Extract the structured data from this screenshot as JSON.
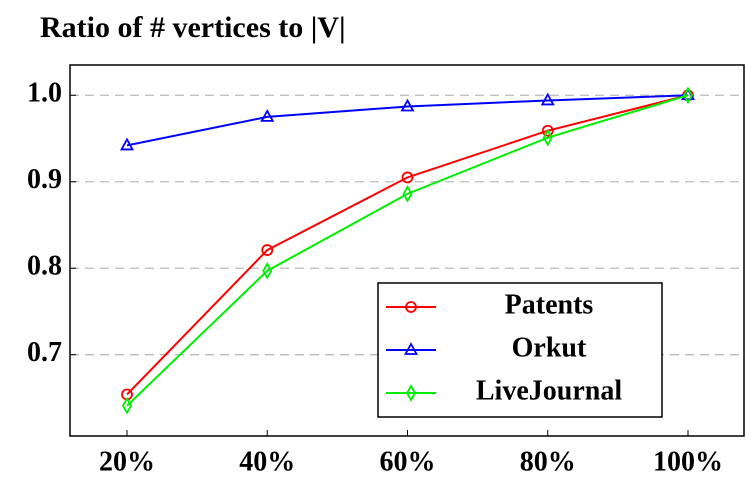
{
  "chart_data": {
    "type": "line",
    "title": "Ratio of # vertices to |V|",
    "categories": [
      "20%",
      "40%",
      "60%",
      "80%",
      "100%"
    ],
    "series": [
      {
        "name": "Patents",
        "color": "#ff0000",
        "marker": "circle",
        "values": [
          0.654,
          0.821,
          0.905,
          0.959,
          1.0
        ]
      },
      {
        "name": "Orkut",
        "color": "#0000ff",
        "marker": "triangle",
        "values": [
          0.942,
          0.975,
          0.987,
          0.994,
          1.0
        ]
      },
      {
        "name": "LiveJournal",
        "color": "#00ee00",
        "marker": "diamond",
        "values": [
          0.641,
          0.797,
          0.886,
          0.951,
          1.0
        ]
      }
    ],
    "ylim": [
      0.606,
      1.035
    ],
    "yticks": [
      0.7,
      0.8,
      0.9,
      {
        "value": 1,
        "label": "1.0"
      }
    ],
    "grid": true,
    "legend": "lower right"
  }
}
